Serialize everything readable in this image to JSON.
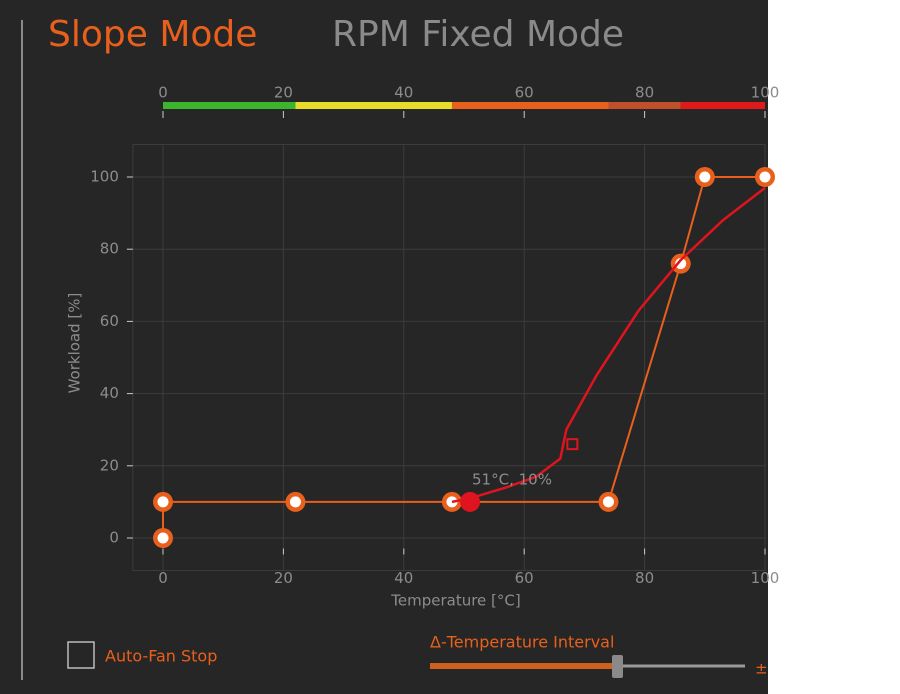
{
  "tabs": [
    "Slope Mode",
    "RPM Fixed Mode"
  ],
  "chart_data": {
    "type": "line",
    "xlabel": "Temperature [°C]",
    "ylabel": "Workload [%]",
    "xlim": [
      -5,
      100
    ],
    "ylim": [
      -9,
      109
    ],
    "xticks": [
      0,
      20,
      40,
      60,
      80,
      100
    ],
    "yticks": [
      0,
      20,
      40,
      60,
      80,
      100
    ],
    "grid": true,
    "zones": {
      "bounds": [
        0,
        22,
        48,
        74,
        86,
        100
      ],
      "colors": [
        "#3cb52e",
        "#e8dc2a",
        "#e8601c",
        "#c0502a",
        "#e01a1a"
      ]
    },
    "series": [
      {
        "color": "#e8601c",
        "markers": true,
        "x": [
          0,
          0,
          22,
          48,
          74,
          86,
          90,
          100
        ],
        "values": [
          0,
          10,
          10,
          10,
          10,
          76,
          100,
          100
        ]
      },
      {
        "color": "#e0141e",
        "markers": false,
        "x": [
          48,
          51,
          57,
          62,
          66,
          67,
          72,
          79,
          86,
          93,
          100
        ],
        "values": [
          10,
          11,
          14,
          17,
          22,
          30,
          45,
          63,
          77,
          88,
          97
        ]
      }
    ],
    "current_point": {
      "x": 51,
      "y": 10,
      "label": "51°C, 10%"
    },
    "marker_square": {
      "x": 68,
      "y": 26
    }
  },
  "controls": {
    "checkbox_label": "Auto-Fan Stop",
    "slider_label": "Δ-Temperature Interval",
    "slider_suffix": "±"
  }
}
